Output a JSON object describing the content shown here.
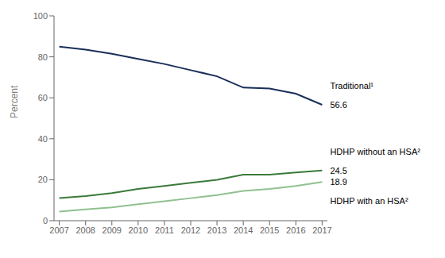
{
  "chart_data": {
    "type": "line",
    "x": [
      2007,
      2008,
      2009,
      2010,
      2011,
      2012,
      2013,
      2014,
      2015,
      2016,
      2017
    ],
    "xlim": [
      2006.8,
      2017.2
    ],
    "xticks": [
      2007,
      2008,
      2009,
      2010,
      2011,
      2012,
      2013,
      2014,
      2015,
      2016,
      2017
    ],
    "ylabel": "Percent",
    "ylim": [
      0,
      100
    ],
    "yticks": [
      0,
      20,
      40,
      60,
      80,
      100
    ],
    "grid": false,
    "series": [
      {
        "name": "Traditional¹",
        "color": "#1a2f5a",
        "values": [
          85.0,
          83.5,
          81.5,
          79.0,
          76.5,
          73.5,
          70.5,
          65.0,
          64.5,
          62.0,
          56.6
        ]
      },
      {
        "name": "HDHP without an HSA²",
        "color": "#3a7a3a",
        "values": [
          11.0,
          12.0,
          13.5,
          15.5,
          17.0,
          18.5,
          20.0,
          22.5,
          22.5,
          23.5,
          24.5
        ]
      },
      {
        "name": "HDHP with an HSA²",
        "color": "#90c090",
        "values": [
          4.5,
          5.5,
          6.5,
          8.0,
          9.5,
          11.0,
          12.5,
          14.5,
          15.5,
          17.0,
          18.9
        ]
      }
    ],
    "annotations": [
      {
        "text": "56.6",
        "x": 2017,
        "y": 56.6
      },
      {
        "text": "24.5",
        "x": 2017,
        "y": 24.5
      },
      {
        "text": "18.9",
        "x": 2017,
        "y": 18.9
      }
    ]
  }
}
